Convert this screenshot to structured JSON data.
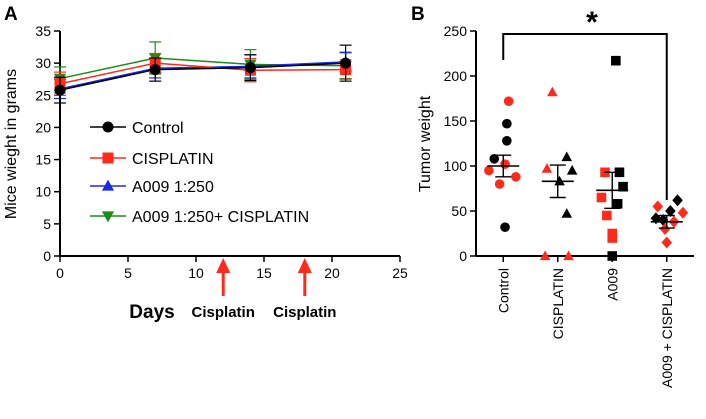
{
  "chart_data": [
    {
      "type": "line",
      "panel_label": "A",
      "xlabel": "Days",
      "ylabel": "Mice wieght in grams",
      "xlim": [
        0,
        25
      ],
      "ylim": [
        0,
        35
      ],
      "xticks": [
        "0",
        "5",
        "10",
        "15",
        "20",
        "25"
      ],
      "yticks": [
        "0",
        "5",
        "10",
        "15",
        "20",
        "25",
        "30",
        "35"
      ],
      "x": [
        0,
        7,
        14,
        21
      ],
      "series": [
        {
          "name": "Control",
          "color": "#000000",
          "marker": "circle",
          "values": [
            25.8,
            29.0,
            29.3,
            30.0
          ],
          "err": [
            2.0,
            1.8,
            2.0,
            2.8
          ]
        },
        {
          "name": "CISPLATIN",
          "color": "#ff2a1a",
          "marker": "square",
          "values": [
            26.8,
            30.0,
            28.9,
            29.0
          ],
          "err": [
            1.8,
            1.5,
            1.8,
            1.5
          ]
        },
        {
          "name": "A009 1:250",
          "color": "#1a2ae6",
          "marker": "triangle-up",
          "values": [
            26.0,
            29.2,
            29.5,
            30.2
          ],
          "err": [
            1.5,
            1.5,
            1.8,
            1.5
          ]
        },
        {
          "name": "A009 1:250+ CISPLATIN",
          "color": "#1a8c1a",
          "marker": "triangle-down",
          "values": [
            27.6,
            30.8,
            29.8,
            29.6
          ],
          "err": [
            1.8,
            2.5,
            2.3,
            2.0
          ]
        }
      ],
      "annotations": [
        {
          "text": "Cisplatin",
          "x": 12
        },
        {
          "text": "Cisplatin",
          "x": 18
        }
      ]
    },
    {
      "type": "scatter",
      "panel_label": "B",
      "ylabel": "Tumor weight",
      "ylim": [
        0,
        250
      ],
      "yticks": [
        "0",
        "50",
        "100",
        "150",
        "200",
        "250"
      ],
      "significance": "*",
      "groups": [
        {
          "name": "Control",
          "marker": "circle",
          "mean": 100,
          "sem": 12,
          "points": [
            {
              "v": 172,
              "c": "red",
              "dx": 0.3
            },
            {
              "v": 147,
              "c": "black",
              "dx": 0.2
            },
            {
              "v": 128,
              "c": "black",
              "dx": 0.2
            },
            {
              "v": 108,
              "c": "black",
              "dx": -0.5
            },
            {
              "v": 102,
              "c": "red",
              "dx": 0.1
            },
            {
              "v": 95,
              "c": "red",
              "dx": -0.8
            },
            {
              "v": 88,
              "c": "red",
              "dx": 0.7
            },
            {
              "v": 80,
              "c": "red",
              "dx": -0.2
            },
            {
              "v": 32,
              "c": "black",
              "dx": 0.1
            }
          ]
        },
        {
          "name": "CISPLATIN",
          "marker": "triangle-up",
          "mean": 83,
          "sem": 18,
          "points": [
            {
              "v": 182,
              "c": "red",
              "dx": -0.3
            },
            {
              "v": 110,
              "c": "black",
              "dx": 0.5
            },
            {
              "v": 97,
              "c": "red",
              "dx": -0.6
            },
            {
              "v": 95,
              "c": "black",
              "dx": 0.8
            },
            {
              "v": 83,
              "c": "black",
              "dx": 0.1
            },
            {
              "v": 47,
              "c": "black",
              "dx": 0.5
            },
            {
              "v": 0,
              "c": "red",
              "dx": -0.7
            },
            {
              "v": 0,
              "c": "red",
              "dx": 0.6
            }
          ]
        },
        {
          "name": "A009",
          "marker": "square",
          "mean": 73,
          "sem": 20,
          "points": [
            {
              "v": 217,
              "c": "black",
              "dx": 0.2
            },
            {
              "v": 93,
              "c": "red",
              "dx": -0.4
            },
            {
              "v": 93,
              "c": "black",
              "dx": 0.4
            },
            {
              "v": 77,
              "c": "black",
              "dx": 0.6
            },
            {
              "v": 65,
              "c": "red",
              "dx": -0.6
            },
            {
              "v": 58,
              "c": "black",
              "dx": 0.3
            },
            {
              "v": 45,
              "c": "red",
              "dx": -0.3
            },
            {
              "v": 25,
              "c": "red",
              "dx": 0.0
            },
            {
              "v": 20,
              "c": "red",
              "dx": 0.0
            },
            {
              "v": 0,
              "c": "black",
              "dx": 0.0
            }
          ]
        },
        {
          "name": "A009 + CISPLATIN",
          "marker": "diamond",
          "mean": 38,
          "sem": 7,
          "points": [
            {
              "v": 62,
              "c": "black",
              "dx": 0.6
            },
            {
              "v": 55,
              "c": "red",
              "dx": -0.5
            },
            {
              "v": 50,
              "c": "black",
              "dx": 0.2
            },
            {
              "v": 48,
              "c": "red",
              "dx": 0.9
            },
            {
              "v": 42,
              "c": "black",
              "dx": -0.6
            },
            {
              "v": 40,
              "c": "black",
              "dx": -0.2
            },
            {
              "v": 38,
              "c": "red",
              "dx": 0.4
            },
            {
              "v": 30,
              "c": "red",
              "dx": -0.1
            },
            {
              "v": 15,
              "c": "red",
              "dx": 0.0
            }
          ]
        }
      ]
    }
  ],
  "colors": {
    "red": "#ff2a1a",
    "black": "#000000",
    "arrow": "#ff2a1a"
  }
}
